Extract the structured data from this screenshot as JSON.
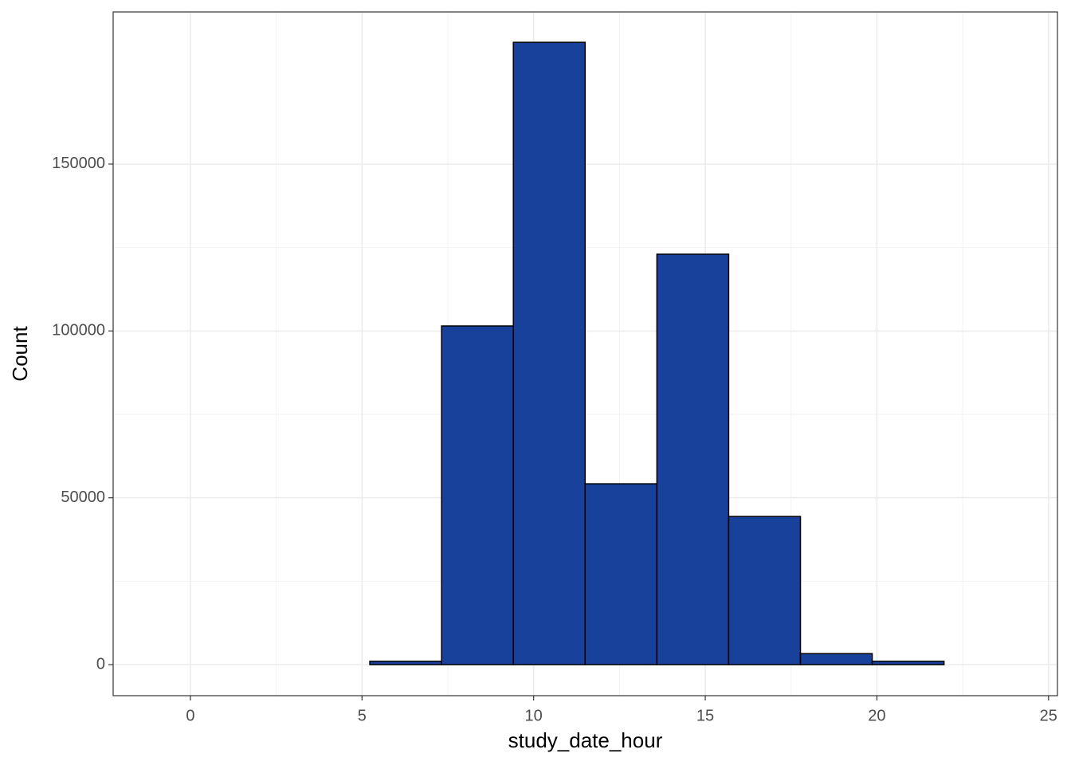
{
  "chart_data": {
    "type": "histogram",
    "x_label": "study_date_hour",
    "y_label": "Count",
    "bins": [
      -1.045,
      1.045,
      3.136,
      5.227,
      7.318,
      9.409,
      11.5,
      13.591,
      15.682,
      17.773,
      19.864,
      21.955,
      24.045
    ],
    "values": [
      0,
      0,
      0,
      1000,
      101500,
      186500,
      54200,
      123000,
      44400,
      3300,
      1000,
      0
    ],
    "color": "#17419a",
    "edge_color": "#000000",
    "xlim": [
      -2.25,
      25.26
    ],
    "xticks": [
      0,
      5,
      10,
      15,
      20,
      25
    ],
    "ylim": [
      -9300,
      195600
    ],
    "yticks": [
      0,
      50000,
      100000,
      150000
    ],
    "grid": true
  }
}
